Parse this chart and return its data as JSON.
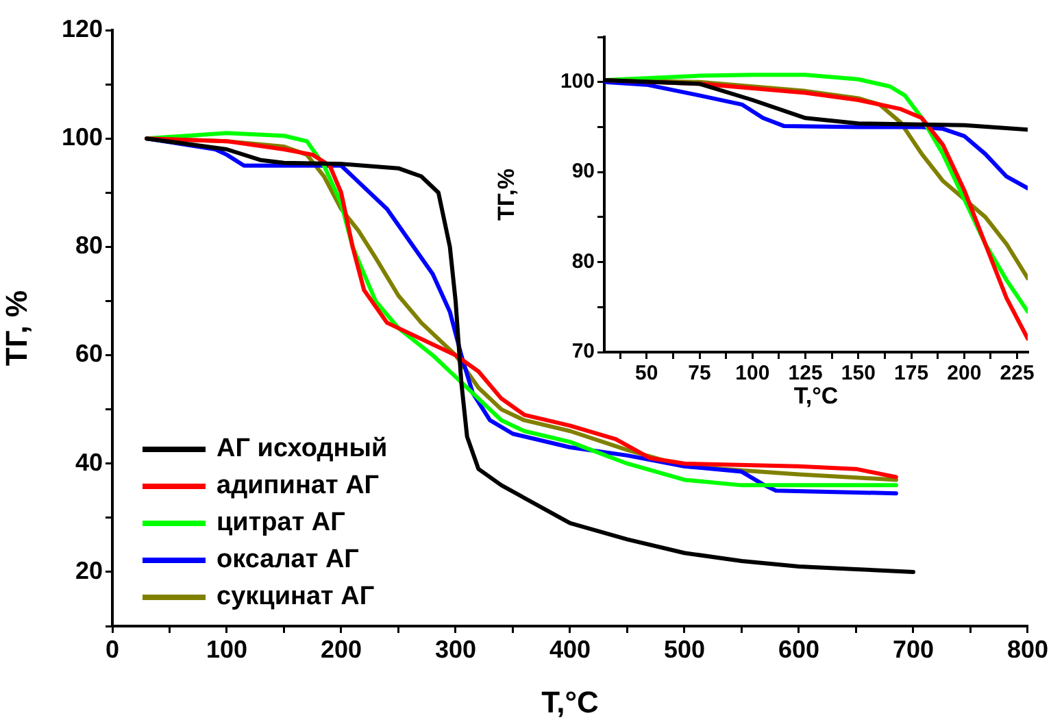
{
  "chart_data": [
    {
      "type": "line",
      "xlabel": "T,°C",
      "ylabel": "ТГ, %",
      "xlim": [
        0,
        800
      ],
      "ylim": [
        10,
        120
      ],
      "xticks": [
        0,
        {
          "value": 50,
          "label": null
        },
        100,
        {
          "value": 150,
          "label": null
        },
        200,
        {
          "value": 250,
          "label": null
        },
        300,
        {
          "value": 350,
          "label": null
        },
        400,
        {
          "value": 450,
          "label": null
        },
        500,
        {
          "value": 550,
          "label": null
        },
        600,
        {
          "value": 650,
          "label": null
        },
        700,
        {
          "value": 750,
          "label": null
        },
        800
      ],
      "yticks": [
        {
          "value": 10,
          "label": null
        },
        20,
        {
          "value": 30,
          "label": null
        },
        40,
        {
          "value": 50,
          "label": null
        },
        60,
        {
          "value": 70,
          "label": null
        },
        80,
        {
          "value": 90,
          "label": null
        },
        100,
        {
          "value": 110,
          "label": null
        },
        120
      ],
      "grid": false,
      "legend": "bottom left",
      "series": [
        {
          "name": "АГ исходный",
          "color": "#000000",
          "x": [
            30,
            100,
            130,
            150,
            200,
            250,
            270,
            285,
            295,
            300,
            305,
            310,
            320,
            340,
            400,
            450,
            500,
            550,
            600,
            650,
            700
          ],
          "values": [
            100,
            98,
            96,
            95.5,
            95.3,
            94.5,
            93,
            90,
            80,
            70,
            55,
            45,
            39,
            36,
            29,
            26,
            23.5,
            22,
            21,
            20.5,
            20
          ]
        },
        {
          "name": "адипинат АГ",
          "color": "#ff0000",
          "x": [
            30,
            100,
            150,
            175,
            190,
            200,
            210,
            220,
            240,
            260,
            280,
            300,
            320,
            340,
            360,
            400,
            440,
            470,
            500,
            600,
            650,
            685
          ],
          "values": [
            100,
            99.5,
            98,
            97,
            95,
            90,
            80,
            72,
            66,
            64,
            62,
            60,
            57,
            52,
            49,
            47,
            44.5,
            41,
            40,
            39.5,
            39,
            37.5
          ]
        },
        {
          "name": "цитрат АГ",
          "color": "#00ff00",
          "x": [
            30,
            100,
            150,
            170,
            185,
            200,
            210,
            230,
            250,
            280,
            300,
            320,
            340,
            360,
            400,
            450,
            500,
            550,
            600,
            685
          ],
          "values": [
            100,
            101,
            100.5,
            99.5,
            95,
            88,
            80,
            70,
            65,
            60,
            56,
            52,
            48,
            46,
            44,
            40,
            37,
            36,
            36,
            36
          ]
        },
        {
          "name": "оксалат АГ",
          "color": "#0000ff",
          "x": [
            30,
            90,
            100,
            115,
            150,
            200,
            220,
            240,
            260,
            280,
            295,
            305,
            315,
            330,
            350,
            400,
            450,
            500,
            550,
            570,
            580,
            685
          ],
          "values": [
            100,
            98,
            97,
            95,
            95,
            95,
            91,
            87,
            81,
            75,
            68,
            60,
            53,
            48,
            45.5,
            43,
            41.5,
            39.5,
            38.5,
            36,
            35,
            34.5
          ]
        },
        {
          "name": "сукцинат АГ",
          "color": "#808000",
          "x": [
            30,
            100,
            150,
            170,
            185,
            200,
            215,
            230,
            250,
            270,
            300,
            320,
            340,
            360,
            400,
            450,
            500,
            600,
            685
          ],
          "values": [
            100,
            99.5,
            98.5,
            97,
            93,
            87,
            83,
            78,
            71,
            66,
            60,
            54,
            50,
            48,
            46,
            42.5,
            39.5,
            38,
            37
          ]
        }
      ]
    },
    {
      "type": "line",
      "xlabel": "T,°C",
      "ylabel": "ТГ,%",
      "xlim": [
        30,
        230
      ],
      "ylim": [
        70,
        105
      ],
      "xticks": [
        {
          "value": 37.5,
          "label": null
        },
        50,
        {
          "value": 62.5,
          "label": null
        },
        75,
        {
          "value": 87.5,
          "label": null
        },
        100,
        {
          "value": 112.5,
          "label": null
        },
        125,
        {
          "value": 137.5,
          "label": null
        },
        150,
        {
          "value": 162.5,
          "label": null
        },
        175,
        {
          "value": 187.5,
          "label": null
        },
        200,
        {
          "value": 212.5,
          "label": null
        },
        225
      ],
      "yticks": [
        70,
        {
          "value": 75,
          "label": null
        },
        80,
        {
          "value": 85,
          "label": null
        },
        90,
        {
          "value": 95,
          "label": null
        },
        100,
        {
          "value": 105,
          "label": null
        }
      ],
      "grid": false,
      "series": [
        {
          "color": "#000000",
          "x": [
            30,
            75,
            100,
            125,
            150,
            200,
            230
          ],
          "values": [
            100.2,
            99.8,
            98,
            96,
            95.4,
            95.2,
            94.7
          ]
        },
        {
          "color": "#ff0000",
          "x": [
            30,
            75,
            125,
            150,
            170,
            180,
            190,
            200,
            210,
            220,
            230
          ],
          "values": [
            100.2,
            99.8,
            98.8,
            98,
            97,
            96,
            93,
            88,
            82,
            76,
            71.5
          ]
        },
        {
          "color": "#00ff00",
          "x": [
            30,
            75,
            100,
            125,
            150,
            165,
            172,
            180,
            190,
            200,
            210,
            220,
            230
          ],
          "values": [
            100.2,
            100.7,
            100.8,
            100.8,
            100.3,
            99.5,
            98.5,
            96,
            92,
            87,
            82,
            78,
            74.5
          ]
        },
        {
          "color": "#0000ff",
          "x": [
            30,
            50,
            75,
            95,
            105,
            115,
            150,
            180,
            190,
            200,
            210,
            220,
            230
          ],
          "values": [
            100,
            99.7,
            98.5,
            97.5,
            96,
            95.1,
            95,
            95,
            94.8,
            94,
            92,
            89.5,
            88.2
          ]
        },
        {
          "color": "#808000",
          "x": [
            30,
            75,
            100,
            125,
            150,
            160,
            170,
            180,
            190,
            200,
            210,
            220,
            230
          ],
          "values": [
            100.2,
            100,
            99.5,
            99,
            98.2,
            97.5,
            95.5,
            92,
            89,
            87,
            85,
            82,
            78.2
          ]
        }
      ]
    }
  ]
}
